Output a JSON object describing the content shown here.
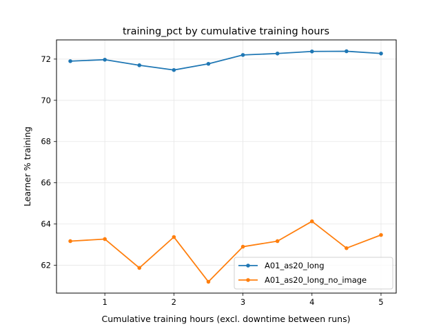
{
  "chart_data": {
    "type": "line",
    "title": "training_pct by cumulative training hours",
    "xlabel": "Cumulative training hours (excl. downtime between runs)",
    "ylabel": "Learner % training",
    "xlim": [
      0.3,
      5.22
    ],
    "ylim": [
      60.65,
      72.93
    ],
    "x_ticks": [
      1,
      2,
      3,
      4,
      5
    ],
    "y_ticks": [
      62,
      64,
      66,
      68,
      70,
      72
    ],
    "grid": true,
    "legend_position": "lower right",
    "x": [
      0.5,
      1.0,
      1.5,
      2.0,
      2.5,
      3.0,
      3.5,
      4.0,
      4.5,
      5.0
    ],
    "series": [
      {
        "name": "A01_as20_long",
        "color": "#1f77b4",
        "values": [
          71.9,
          71.97,
          71.7,
          71.47,
          71.77,
          72.2,
          72.27,
          72.37,
          72.38,
          72.27
        ]
      },
      {
        "name": "A01_as20_long_no_image",
        "color": "#ff7f0e",
        "values": [
          63.17,
          63.27,
          61.87,
          63.37,
          61.2,
          62.9,
          63.17,
          64.13,
          62.83,
          63.47
        ]
      }
    ]
  }
}
